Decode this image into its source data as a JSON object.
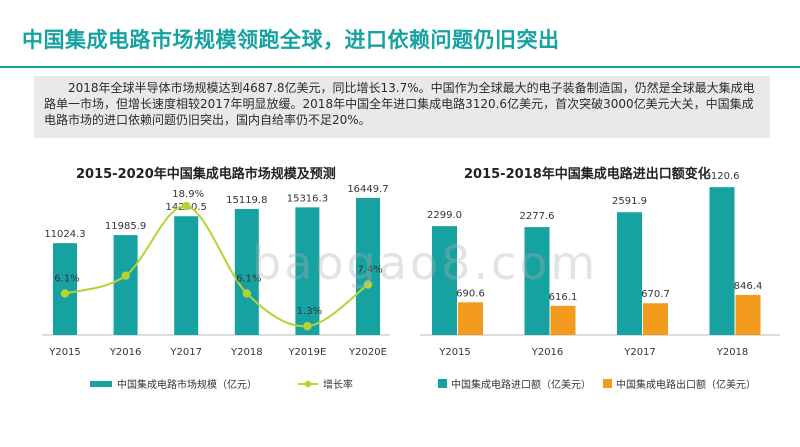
{
  "page": {
    "title": "中国集成电路市场规模领跑全球，进口依赖问题仍旧突出",
    "summary": "2018年全球半导体市场规模达到4687.8亿美元，同比增长13.7%。中国作为全球最大的电子装备制造国，仍然是全球最大集成电路单一市场，但增长速度相较2017年明显放缓。2018年中国全年进口集成电路3120.6亿美元，首次突破3000亿美元大关，中国集成电路市场的进口依赖问题仍旧突出，国内自给率仍不足20%。",
    "watermark": "baogao8.com"
  },
  "colors": {
    "teal": "#17a2a2",
    "line": "#b5d334",
    "orange": "#f39b1c"
  },
  "chart_data": [
    {
      "type": "bar",
      "title": "2015-2020年中国集成电路市场规模及预测",
      "categories": [
        "Y2015",
        "Y2016",
        "Y2017",
        "Y2018",
        "Y2019E",
        "Y2020E"
      ],
      "series": [
        {
          "name": "中国集成电路市场规模（亿元）",
          "type": "bar",
          "values": [
            11024.3,
            11985.9,
            14250.5,
            15119.8,
            15316.3,
            16449.7
          ],
          "labels": [
            "11024.3",
            "11985.9",
            "14250.5",
            "15119.8",
            "15316.3",
            "16449.7"
          ]
        },
        {
          "name": "增长率",
          "type": "line",
          "values": [
            6.1,
            8.7,
            18.9,
            6.1,
            1.3,
            7.4
          ],
          "labels": [
            "6.1%",
            "",
            "18.9%",
            "6.1%",
            "1.3%",
            "7.4%"
          ]
        }
      ],
      "ylim": [
        0,
        18000
      ],
      "y2lim": [
        0,
        22
      ],
      "legend": "bottom"
    },
    {
      "type": "bar",
      "title": "2015-2018年中国集成电路进出口额变化",
      "categories": [
        "Y2015",
        "Y2016",
        "Y2017",
        "Y2018"
      ],
      "series": [
        {
          "name": "中国集成电路进口额（亿美元）",
          "values": [
            2299.0,
            2277.6,
            2591.9,
            3120.6
          ],
          "labels": [
            "2299.0",
            "2277.6",
            "2591.9",
            "3120.6"
          ]
        },
        {
          "name": "中国集成电路出口额（亿美元）",
          "values": [
            690.6,
            616.1,
            670.7,
            846.4
          ],
          "labels": [
            "690.6",
            "616.1",
            "670.7",
            "846.4"
          ]
        }
      ],
      "ylim": [
        0,
        3800
      ],
      "legend": "bottom"
    }
  ]
}
